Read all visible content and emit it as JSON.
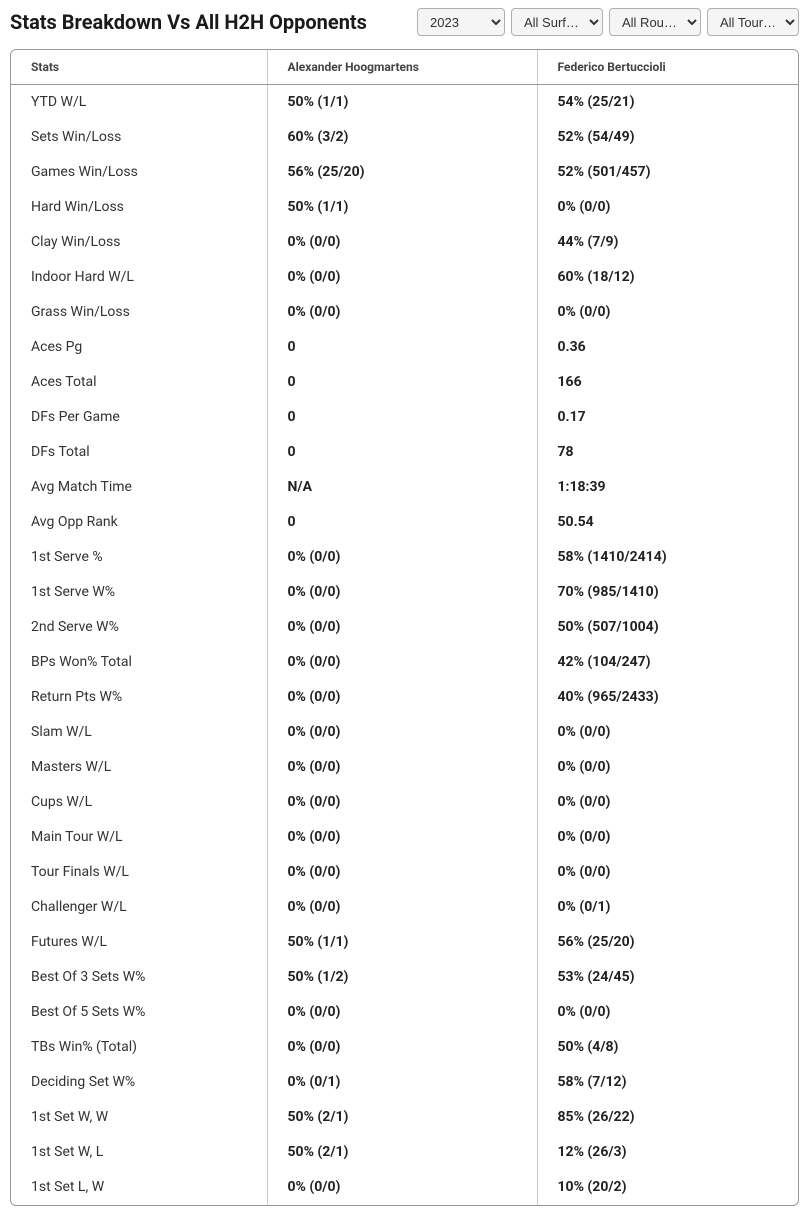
{
  "header": {
    "title": "Stats Breakdown Vs All H2H Opponents",
    "filters": {
      "year": "2023",
      "surface": "All Surf…",
      "round": "All Rou…",
      "tournament": "All Tour…"
    }
  },
  "table": {
    "columns": {
      "stats": "Stats",
      "player1": "Alexander Hoogmartens",
      "player2": "Federico Bertuccioli"
    },
    "rows": [
      {
        "label": "YTD W/L",
        "p1": "50% (1/1)",
        "p2": "54% (25/21)"
      },
      {
        "label": "Sets Win/Loss",
        "p1": "60% (3/2)",
        "p2": "52% (54/49)"
      },
      {
        "label": "Games Win/Loss",
        "p1": "56% (25/20)",
        "p2": "52% (501/457)"
      },
      {
        "label": "Hard Win/Loss",
        "p1": "50% (1/1)",
        "p2": "0% (0/0)"
      },
      {
        "label": "Clay Win/Loss",
        "p1": "0% (0/0)",
        "p2": "44% (7/9)"
      },
      {
        "label": "Indoor Hard W/L",
        "p1": "0% (0/0)",
        "p2": "60% (18/12)"
      },
      {
        "label": "Grass Win/Loss",
        "p1": "0% (0/0)",
        "p2": "0% (0/0)"
      },
      {
        "label": "Aces Pg",
        "p1": "0",
        "p2": "0.36"
      },
      {
        "label": "Aces Total",
        "p1": "0",
        "p2": "166"
      },
      {
        "label": "DFs Per Game",
        "p1": "0",
        "p2": "0.17"
      },
      {
        "label": "DFs Total",
        "p1": "0",
        "p2": "78"
      },
      {
        "label": "Avg Match Time",
        "p1": "N/A",
        "p2": "1:18:39"
      },
      {
        "label": "Avg Opp Rank",
        "p1": "0",
        "p2": "50.54"
      },
      {
        "label": "1st Serve %",
        "p1": "0% (0/0)",
        "p2": "58% (1410/2414)"
      },
      {
        "label": "1st Serve W%",
        "p1": "0% (0/0)",
        "p2": "70% (985/1410)"
      },
      {
        "label": "2nd Serve W%",
        "p1": "0% (0/0)",
        "p2": "50% (507/1004)"
      },
      {
        "label": "BPs Won% Total",
        "p1": "0% (0/0)",
        "p2": "42% (104/247)"
      },
      {
        "label": "Return Pts W%",
        "p1": "0% (0/0)",
        "p2": "40% (965/2433)"
      },
      {
        "label": "Slam W/L",
        "p1": "0% (0/0)",
        "p2": "0% (0/0)"
      },
      {
        "label": "Masters W/L",
        "p1": "0% (0/0)",
        "p2": "0% (0/0)"
      },
      {
        "label": "Cups W/L",
        "p1": "0% (0/0)",
        "p2": "0% (0/0)"
      },
      {
        "label": "Main Tour W/L",
        "p1": "0% (0/0)",
        "p2": "0% (0/0)"
      },
      {
        "label": "Tour Finals W/L",
        "p1": "0% (0/0)",
        "p2": "0% (0/0)"
      },
      {
        "label": "Challenger W/L",
        "p1": "0% (0/0)",
        "p2": "0% (0/1)"
      },
      {
        "label": "Futures W/L",
        "p1": "50% (1/1)",
        "p2": "56% (25/20)"
      },
      {
        "label": "Best Of 3 Sets W%",
        "p1": "50% (1/2)",
        "p2": "53% (24/45)"
      },
      {
        "label": "Best Of 5 Sets W%",
        "p1": "0% (0/0)",
        "p2": "0% (0/0)"
      },
      {
        "label": "TBs Win% (Total)",
        "p1": "0% (0/0)",
        "p2": "50% (4/8)"
      },
      {
        "label": "Deciding Set W%",
        "p1": "0% (0/1)",
        "p2": "58% (7/12)"
      },
      {
        "label": "1st Set W, W",
        "p1": "50% (2/1)",
        "p2": "85% (26/22)"
      },
      {
        "label": "1st Set W, L",
        "p1": "50% (2/1)",
        "p2": "12% (26/3)"
      },
      {
        "label": "1st Set L, W",
        "p1": "0% (0/0)",
        "p2": "10% (20/2)"
      }
    ]
  }
}
